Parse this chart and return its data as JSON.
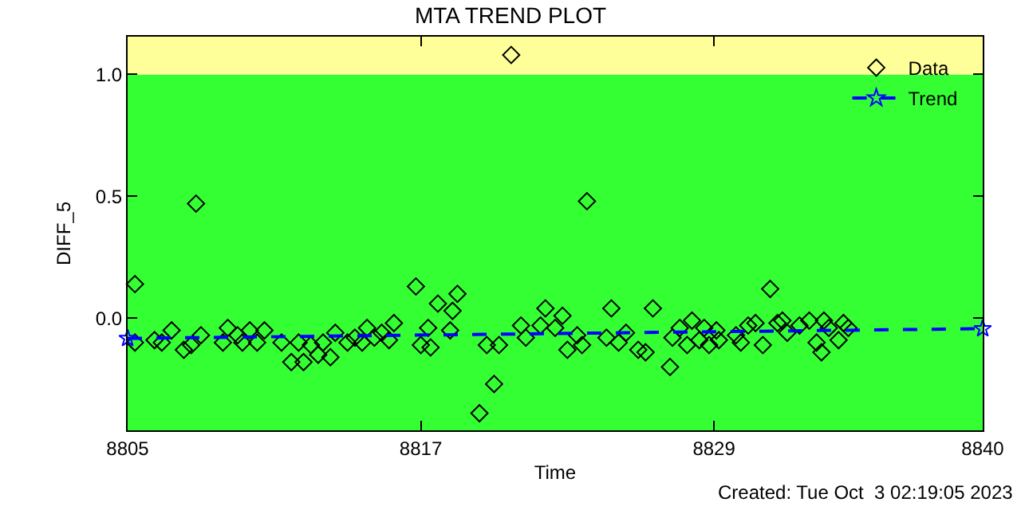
{
  "chart_data": {
    "type": "scatter",
    "title": "MTA TREND PLOT",
    "xlabel": "Time",
    "ylabel": "DIFF_5",
    "annotations": [
      "Created: Tue Oct  3 02:19:05 2023"
    ],
    "xlim": [
      8805,
      8840
    ],
    "xticks": [
      8805,
      8817,
      8829,
      8840
    ],
    "ylim": [
      -0.46,
      1.155
    ],
    "yticks": [
      {
        "value": 0,
        "label": "0.0"
      },
      {
        "value": 0.5,
        "label": "0.5"
      },
      {
        "value": 1,
        "label": "1.0"
      }
    ],
    "grid": false,
    "legend": "top right",
    "bands": [
      {
        "axis": "y",
        "from": -0.46,
        "to": 1.0,
        "color": "#33ff33"
      },
      {
        "axis": "y",
        "from": 1.0,
        "to": 1.155,
        "color": "#ffff99"
      }
    ],
    "series": [
      {
        "name": "Data",
        "color": "#000000",
        "marker": "diamond",
        "x": [
          8805.3,
          8805.3,
          8806.1,
          8806.4,
          8806.8,
          8807.3,
          8807.6,
          8807.8,
          8808.0,
          8808.9,
          8809.1,
          8809.5,
          8809.7,
          8810.0,
          8810.3,
          8810.6,
          8811.3,
          8811.7,
          8812.0,
          8812.2,
          8812.5,
          8812.8,
          8813.0,
          8813.3,
          8813.5,
          8814.0,
          8814.3,
          8814.6,
          8814.8,
          8815.1,
          8815.4,
          8815.7,
          8815.9,
          8816.8,
          8817.0,
          8817.3,
          8817.4,
          8817.7,
          8818.2,
          8818.3,
          8818.5,
          8819.4,
          8819.7,
          8820.0,
          8820.2,
          8820.7,
          8821.1,
          8821.3,
          8821.9,
          8822.1,
          8822.5,
          8822.8,
          8823.0,
          8823.4,
          8823.6,
          8823.8,
          8824.6,
          8824.8,
          8825.1,
          8825.4,
          8825.9,
          8826.2,
          8826.5,
          8827.2,
          8827.3,
          8827.6,
          8827.9,
          8828.1,
          8828.4,
          8828.6,
          8828.8,
          8829.1,
          8829.2,
          8829.9,
          8830.1,
          8830.4,
          8830.7,
          8831.0,
          8831.3,
          8831.6,
          8831.8,
          8832.0,
          8832.5,
          8832.9,
          8833.2,
          8833.4,
          8833.5,
          8833.7,
          8834.1,
          8834.3,
          8834.5
        ],
        "values": [
          0.14,
          -0.1,
          -0.09,
          -0.1,
          -0.05,
          -0.13,
          -0.11,
          0.47,
          -0.07,
          -0.1,
          -0.04,
          -0.07,
          -0.1,
          -0.05,
          -0.1,
          -0.05,
          -0.1,
          -0.18,
          -0.1,
          -0.18,
          -0.11,
          -0.15,
          -0.1,
          -0.16,
          -0.06,
          -0.1,
          -0.08,
          -0.1,
          -0.04,
          -0.08,
          -0.06,
          -0.09,
          -0.02,
          0.13,
          -0.11,
          -0.04,
          -0.12,
          0.06,
          -0.05,
          0.03,
          0.1,
          -0.39,
          -0.11,
          -0.27,
          -0.11,
          1.08,
          -0.03,
          -0.08,
          -0.03,
          0.04,
          -0.04,
          0.01,
          -0.13,
          -0.07,
          -0.11,
          0.48,
          -0.08,
          0.04,
          -0.1,
          -0.06,
          -0.13,
          -0.14,
          0.04,
          -0.2,
          -0.08,
          -0.04,
          -0.11,
          -0.01,
          -0.09,
          -0.04,
          -0.11,
          -0.05,
          -0.09,
          -0.07,
          -0.1,
          -0.03,
          -0.02,
          -0.11,
          0.12,
          -0.02,
          -0.01,
          -0.06,
          -0.03,
          -0.01,
          -0.1,
          -0.14,
          -0.01,
          -0.04,
          -0.09,
          -0.02,
          -0.04
        ]
      },
      {
        "name": "Trend",
        "type": "line",
        "color": "#0000ff",
        "marker": "star",
        "line_style": "dashed",
        "x": [
          8805,
          8840
        ],
        "values": [
          -0.083,
          -0.043
        ]
      }
    ]
  }
}
